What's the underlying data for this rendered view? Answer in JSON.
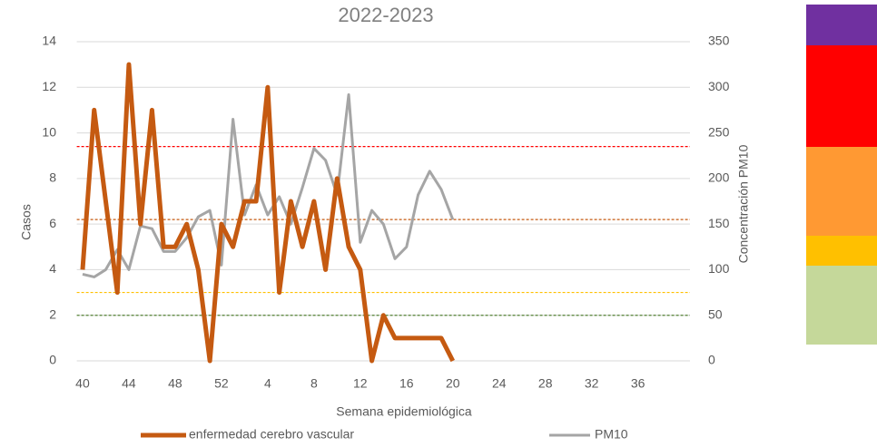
{
  "chart_data": {
    "type": "line",
    "title": "2022-2023",
    "x_label": "Semana epidemiológica",
    "y_label": "Casos",
    "y2_label": "Concentración PM10",
    "categories": [
      "40",
      null,
      null,
      null,
      "44",
      null,
      null,
      null,
      "48",
      null,
      null,
      null,
      "52",
      null,
      null,
      null,
      "4",
      null,
      null,
      null,
      "8",
      null,
      null,
      null,
      "12",
      null,
      null,
      null,
      "16",
      null,
      null,
      null,
      "20",
      null,
      null,
      null,
      "24",
      null,
      null,
      null,
      "28",
      null,
      null,
      null,
      "32",
      null,
      null,
      null,
      "36",
      null,
      null,
      null,
      null
    ],
    "series": [
      {
        "name": "enfermedad cerebro vascular",
        "color": "#c55a11",
        "axis": "y",
        "values": [
          4,
          11,
          7,
          3,
          13,
          6,
          11,
          5,
          5,
          6,
          4,
          0,
          6,
          5,
          7,
          7,
          12,
          3,
          7,
          5,
          7,
          4,
          8,
          5,
          4,
          0,
          2,
          1,
          1,
          1,
          1,
          1,
          0,
          null,
          null,
          null,
          null,
          null,
          null,
          null,
          null,
          null,
          null,
          null,
          null,
          null,
          null,
          null,
          null,
          null,
          null,
          null,
          null
        ]
      },
      {
        "name": "PM10",
        "color": "#a5a5a5",
        "axis": "y2",
        "values": [
          95,
          92,
          100,
          122,
          100,
          148,
          145,
          120,
          120,
          135,
          158,
          165,
          105,
          265,
          160,
          193,
          160,
          180,
          150,
          190,
          233,
          220,
          182,
          292,
          130,
          165,
          150,
          112,
          125,
          182,
          208,
          188,
          155,
          null,
          null,
          null,
          null,
          null,
          null,
          null,
          null,
          null,
          null,
          null,
          null,
          null,
          null,
          null,
          null,
          null,
          null,
          null,
          null
        ]
      }
    ],
    "ylim": [
      0,
      14
    ],
    "yticks": [
      0,
      2,
      4,
      6,
      8,
      10,
      12,
      14
    ],
    "y2lim": [
      0,
      350
    ],
    "y2ticks": [
      0,
      50,
      100,
      150,
      200,
      250,
      300,
      350
    ],
    "reference_lines": [
      {
        "value": 50,
        "color": "#548235",
        "axis": "y2"
      },
      {
        "value": 75,
        "color": "#ffc000",
        "axis": "y2"
      },
      {
        "value": 155,
        "color": "#c55a11",
        "axis": "y2"
      },
      {
        "value": 235,
        "color": "#ff0000",
        "axis": "y2"
      }
    ],
    "grid": true,
    "legend": "bottom"
  }
}
